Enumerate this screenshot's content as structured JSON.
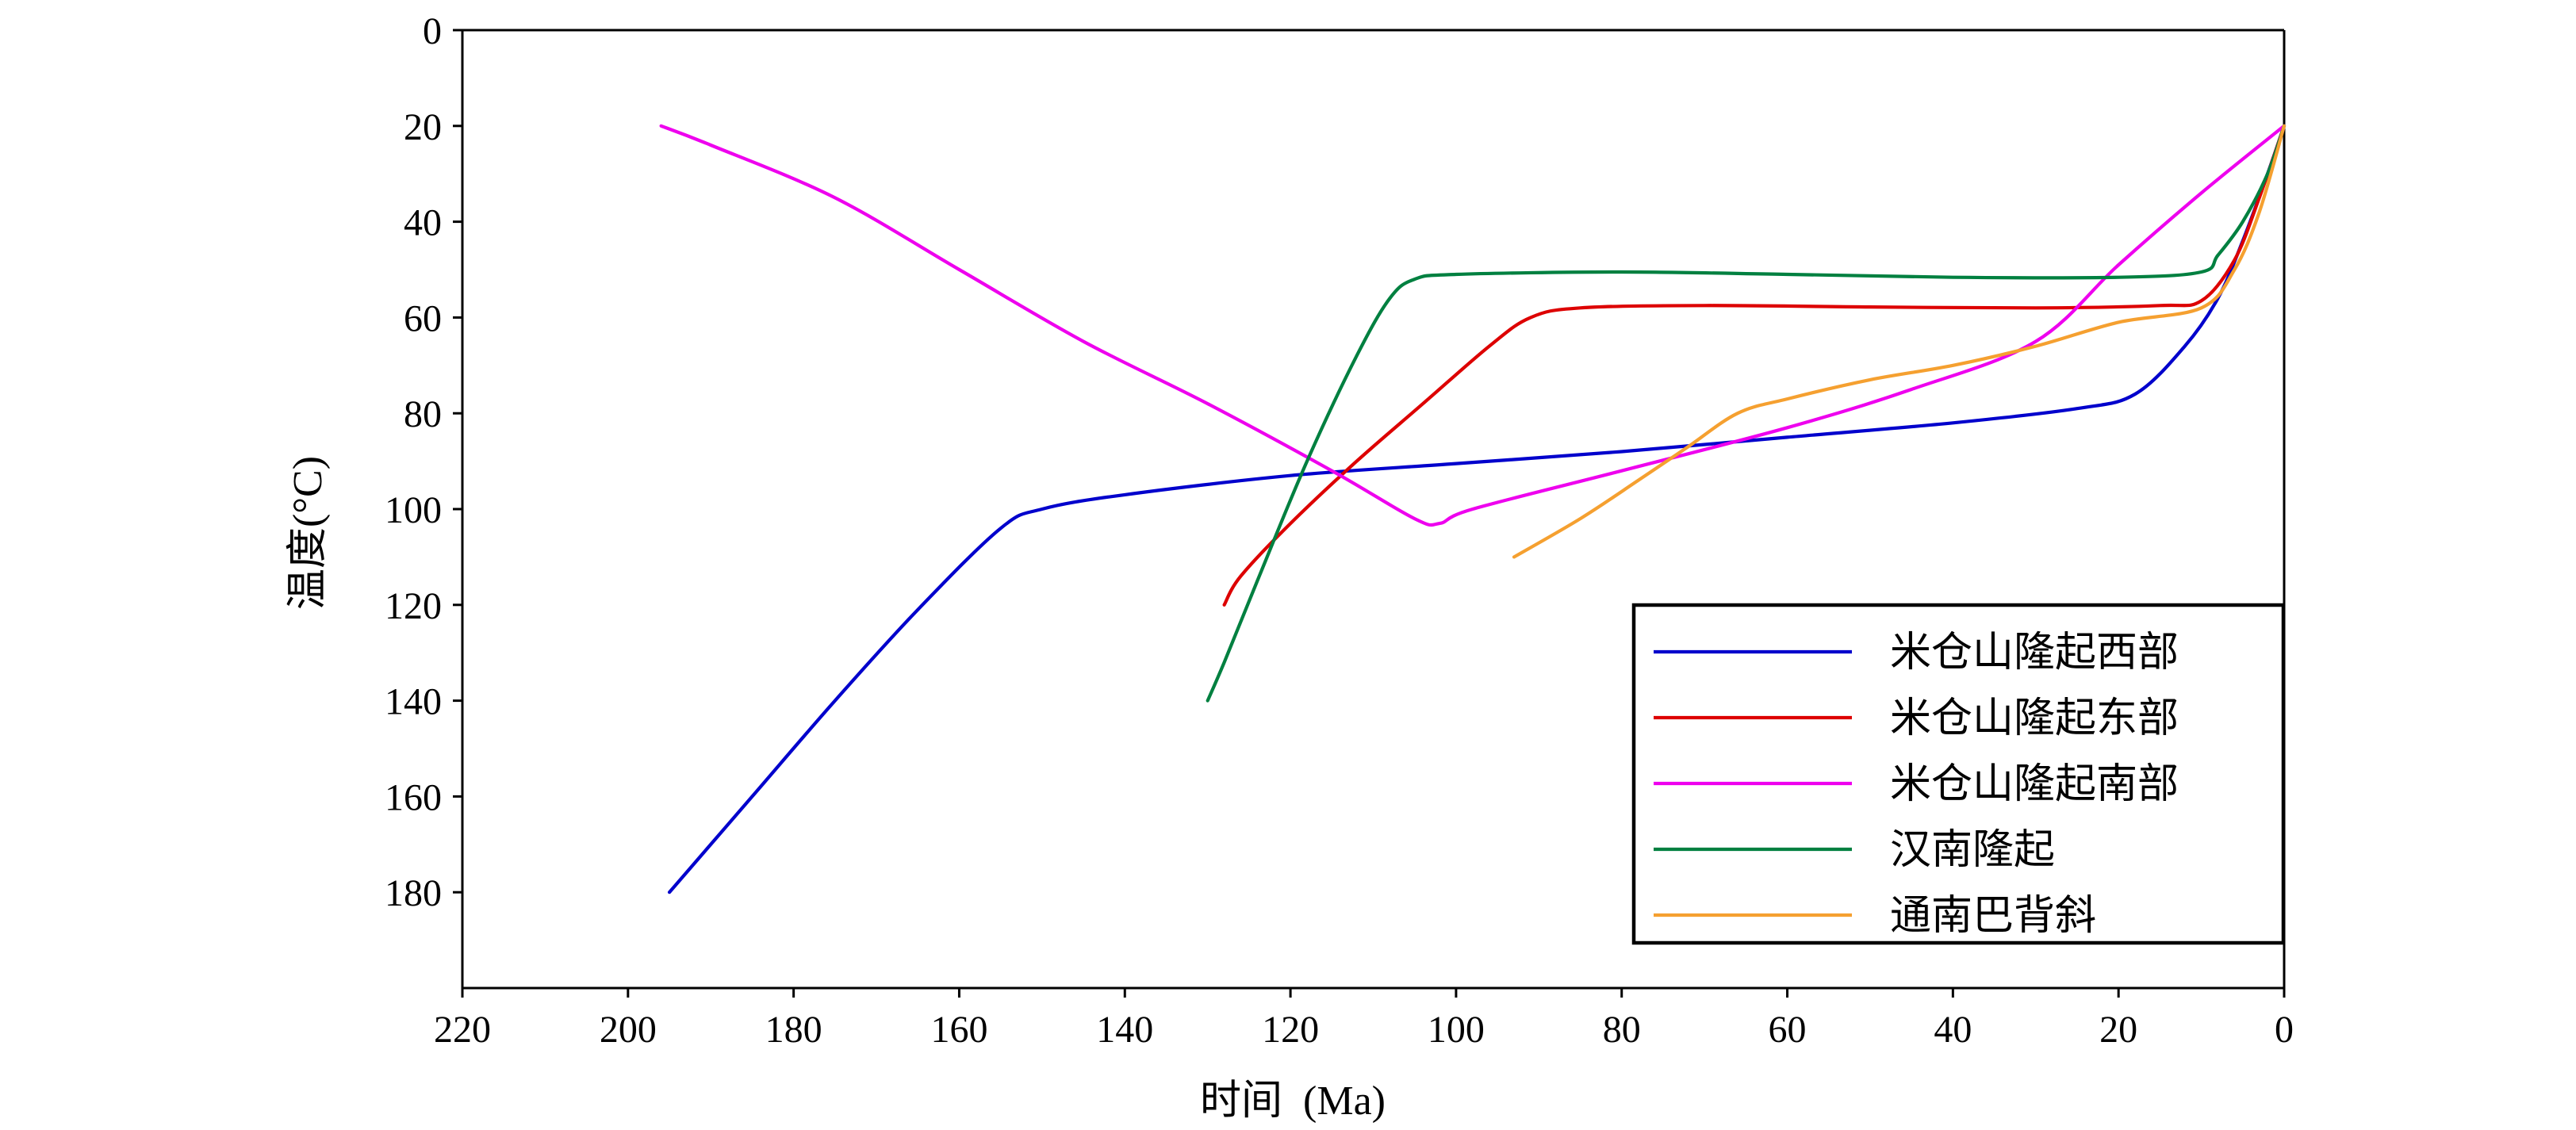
{
  "chart_data": {
    "type": "line",
    "xlabel": "时间  (Ma)",
    "ylabel": "温度(°C)",
    "xlim": [
      220,
      0
    ],
    "ylim": [
      0,
      200
    ],
    "x_ticks": [
      "220",
      "200",
      "180",
      "160",
      "140",
      "120",
      "100",
      "80",
      "60",
      "40",
      "20",
      "0"
    ],
    "x_tick_values": [
      220,
      200,
      180,
      160,
      140,
      120,
      100,
      80,
      60,
      40,
      20,
      0
    ],
    "y_ticks": [
      "0",
      "20",
      "40",
      "60",
      "80",
      "100",
      "120",
      "140",
      "160",
      "180"
    ],
    "y_tick_values": [
      0,
      20,
      40,
      60,
      80,
      100,
      120,
      140,
      160,
      180
    ],
    "legend_position": "bottom-right",
    "grid": false,
    "series": [
      {
        "name": "米仓山隆起西部",
        "color": "#0000cc",
        "points": [
          [
            195,
            180
          ],
          [
            185,
            160
          ],
          [
            175,
            140
          ],
          [
            165,
            121
          ],
          [
            155,
            104
          ],
          [
            150,
            100
          ],
          [
            140,
            97
          ],
          [
            120,
            93
          ],
          [
            100,
            90.5
          ],
          [
            80,
            88
          ],
          [
            60,
            85
          ],
          [
            40,
            82
          ],
          [
            25,
            79
          ],
          [
            18,
            76
          ],
          [
            12,
            66
          ],
          [
            8,
            56
          ],
          [
            5,
            44
          ],
          [
            2,
            30
          ],
          [
            0,
            20
          ]
        ]
      },
      {
        "name": "米仓山隆起东部",
        "color": "#dd0000",
        "points": [
          [
            128,
            120
          ],
          [
            126,
            114
          ],
          [
            120,
            103
          ],
          [
            112,
            90
          ],
          [
            104,
            78
          ],
          [
            96,
            66
          ],
          [
            91,
            60
          ],
          [
            85,
            58
          ],
          [
            70,
            57.5
          ],
          [
            50,
            57.8
          ],
          [
            30,
            58
          ],
          [
            15,
            57.5
          ],
          [
            10,
            56.5
          ],
          [
            6,
            48
          ],
          [
            3,
            35
          ],
          [
            0,
            20
          ]
        ]
      },
      {
        "name": "米仓山隆起南部",
        "color": "#ee00ee",
        "points": [
          [
            196,
            20
          ],
          [
            190,
            24
          ],
          [
            175,
            35
          ],
          [
            160,
            50
          ],
          [
            145,
            65
          ],
          [
            130,
            78
          ],
          [
            115,
            92
          ],
          [
            105,
            102
          ],
          [
            102,
            103
          ],
          [
            98,
            100
          ],
          [
            80,
            92
          ],
          [
            60,
            83
          ],
          [
            45,
            75
          ],
          [
            30,
            65
          ],
          [
            20,
            49
          ],
          [
            10,
            34
          ],
          [
            0,
            20
          ]
        ]
      },
      {
        "name": "汉南隆起",
        "color": "#008040",
        "points": [
          [
            130,
            140
          ],
          [
            128,
            132
          ],
          [
            124,
            115
          ],
          [
            118,
            90
          ],
          [
            112,
            68
          ],
          [
            108,
            56
          ],
          [
            105,
            52
          ],
          [
            100,
            51
          ],
          [
            80,
            50.5
          ],
          [
            60,
            51
          ],
          [
            40,
            51.6
          ],
          [
            20,
            51.6
          ],
          [
            10,
            50.5
          ],
          [
            8,
            47
          ],
          [
            5,
            40
          ],
          [
            2,
            30
          ],
          [
            0,
            20
          ]
        ]
      },
      {
        "name": "通南巴背斜",
        "color": "#f5a030",
        "points": [
          [
            93,
            110
          ],
          [
            85,
            102
          ],
          [
            78,
            94
          ],
          [
            72,
            87
          ],
          [
            66,
            80
          ],
          [
            60,
            77
          ],
          [
            50,
            73
          ],
          [
            40,
            70
          ],
          [
            30,
            66
          ],
          [
            20,
            61
          ],
          [
            10,
            58
          ],
          [
            6,
            50
          ],
          [
            3,
            38
          ],
          [
            0,
            20
          ]
        ]
      }
    ]
  }
}
